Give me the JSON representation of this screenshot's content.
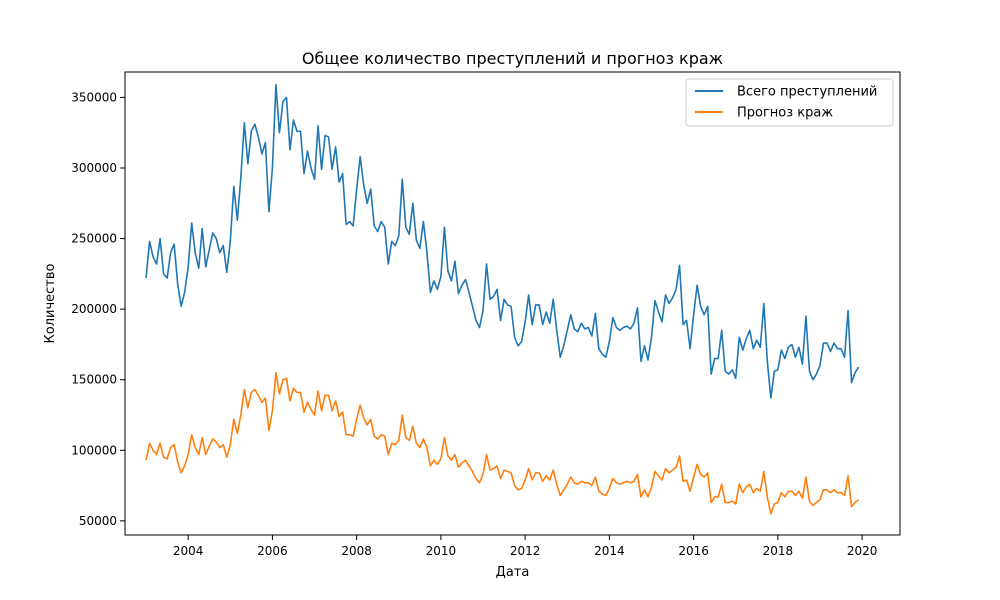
{
  "chart_data": {
    "type": "line",
    "title": "Общее количество преступлений и прогноз краж",
    "xlabel": "Дата",
    "ylabel": "Количество",
    "xlim": [
      2002.5,
      2020.9
    ],
    "ylim": [
      40000,
      368000
    ],
    "xticks": [
      2004,
      2006,
      2008,
      2010,
      2012,
      2014,
      2016,
      2018,
      2020
    ],
    "yticks": [
      50000,
      100000,
      150000,
      200000,
      250000,
      300000,
      350000
    ],
    "grid": false,
    "legend": "top-right",
    "x_start": 2003.0,
    "x_step": 0.0833333,
    "series": [
      {
        "name": "Всего преступлений",
        "color": "#1f77b4",
        "values": [
          222000,
          248000,
          237000,
          232000,
          250000,
          225000,
          222000,
          240000,
          246000,
          218000,
          202000,
          212000,
          230000,
          261000,
          240000,
          229000,
          257000,
          230000,
          242000,
          254000,
          250000,
          240000,
          245000,
          226000,
          248000,
          287000,
          263000,
          293000,
          332000,
          303000,
          326000,
          331000,
          322000,
          310000,
          318000,
          269000,
          300000,
          359000,
          325000,
          347000,
          350000,
          313000,
          334000,
          326000,
          326000,
          296000,
          312000,
          300000,
          292000,
          330000,
          299000,
          323000,
          322000,
          299000,
          315000,
          290000,
          296000,
          260000,
          262000,
          259000,
          285000,
          308000,
          288000,
          275000,
          285000,
          259000,
          255000,
          262000,
          258000,
          232000,
          248000,
          245000,
          252000,
          292000,
          258000,
          253000,
          275000,
          249000,
          243000,
          262000,
          241000,
          212000,
          220000,
          214000,
          223000,
          258000,
          227000,
          220000,
          234000,
          211000,
          217000,
          221000,
          212000,
          202000,
          192000,
          187000,
          199000,
          232000,
          207000,
          209000,
          214000,
          192000,
          207000,
          203000,
          202000,
          180000,
          174000,
          177000,
          191000,
          210000,
          189000,
          203000,
          203000,
          189000,
          198000,
          190000,
          207000,
          185000,
          166000,
          174000,
          185000,
          196000,
          186000,
          184000,
          190000,
          186000,
          187000,
          181000,
          197000,
          172000,
          168000,
          166000,
          177000,
          194000,
          187000,
          185000,
          187000,
          188000,
          186000,
          190000,
          201000,
          163000,
          174000,
          164000,
          180000,
          206000,
          198000,
          191000,
          210000,
          204000,
          208000,
          214000,
          231000,
          189000,
          192000,
          172000,
          196000,
          217000,
          202000,
          196000,
          202000,
          154000,
          165000,
          165000,
          185000,
          156000,
          154000,
          157000,
          151000,
          180000,
          171000,
          179000,
          185000,
          172000,
          178000,
          173000,
          204000,
          163000,
          137000,
          156000,
          157000,
          171000,
          165000,
          173000,
          175000,
          166000,
          173000,
          161000,
          195000,
          156000,
          150000,
          154000,
          160000,
          176000,
          176000,
          170000,
          176000,
          172000,
          172000,
          166000,
          199000,
          148000,
          155000,
          159000
        ]
      },
      {
        "name": "Прогноз краж",
        "color": "#ff7f0e",
        "values": [
          93000,
          105000,
          100000,
          97000,
          105000,
          95000,
          94000,
          102000,
          104000,
          92000,
          84000,
          89000,
          97000,
          111000,
          102000,
          97000,
          109000,
          97000,
          103000,
          108000,
          106000,
          102000,
          104000,
          95000,
          104000,
          122000,
          112000,
          125000,
          143000,
          130000,
          141000,
          143000,
          139000,
          134000,
          137000,
          114000,
          128000,
          155000,
          140000,
          150000,
          151000,
          135000,
          144000,
          141000,
          141000,
          127000,
          134000,
          129000,
          125000,
          142000,
          128000,
          139000,
          139000,
          128000,
          135000,
          124000,
          127000,
          111000,
          111000,
          110000,
          122000,
          132000,
          123000,
          118000,
          122000,
          110000,
          108000,
          111000,
          110000,
          97000,
          105000,
          104000,
          107000,
          125000,
          109000,
          107000,
          117000,
          105000,
          102000,
          108000,
          102000,
          89000,
          93000,
          90000,
          94000,
          109000,
          96000,
          93000,
          97000,
          88000,
          91000,
          93000,
          89000,
          85000,
          80000,
          77000,
          83000,
          97000,
          86000,
          87000,
          89000,
          80000,
          86000,
          85000,
          84000,
          75000,
          72000,
          73000,
          79000,
          87000,
          79000,
          84000,
          84000,
          78000,
          82000,
          79000,
          86000,
          76000,
          68000,
          72000,
          76000,
          81000,
          77000,
          76000,
          78000,
          77000,
          77000,
          75000,
          81000,
          71000,
          69000,
          68000,
          73000,
          80000,
          77000,
          76000,
          77000,
          78000,
          77000,
          78000,
          83000,
          67000,
          72000,
          67000,
          74000,
          85000,
          82000,
          79000,
          87000,
          84000,
          86000,
          88000,
          96000,
          78000,
          79000,
          71000,
          81000,
          90000,
          83000,
          81000,
          84000,
          63000,
          67000,
          67000,
          76000,
          63000,
          63000,
          64000,
          62000,
          76000,
          70000,
          74000,
          76000,
          70000,
          73000,
          71000,
          85000,
          67000,
          55000,
          62000,
          63000,
          70000,
          67000,
          71000,
          71000,
          68000,
          71000,
          66000,
          81000,
          64000,
          61000,
          63000,
          65000,
          72000,
          72000,
          70000,
          72000,
          70000,
          70000,
          68000,
          82000,
          60000,
          63000,
          65000
        ]
      }
    ]
  }
}
